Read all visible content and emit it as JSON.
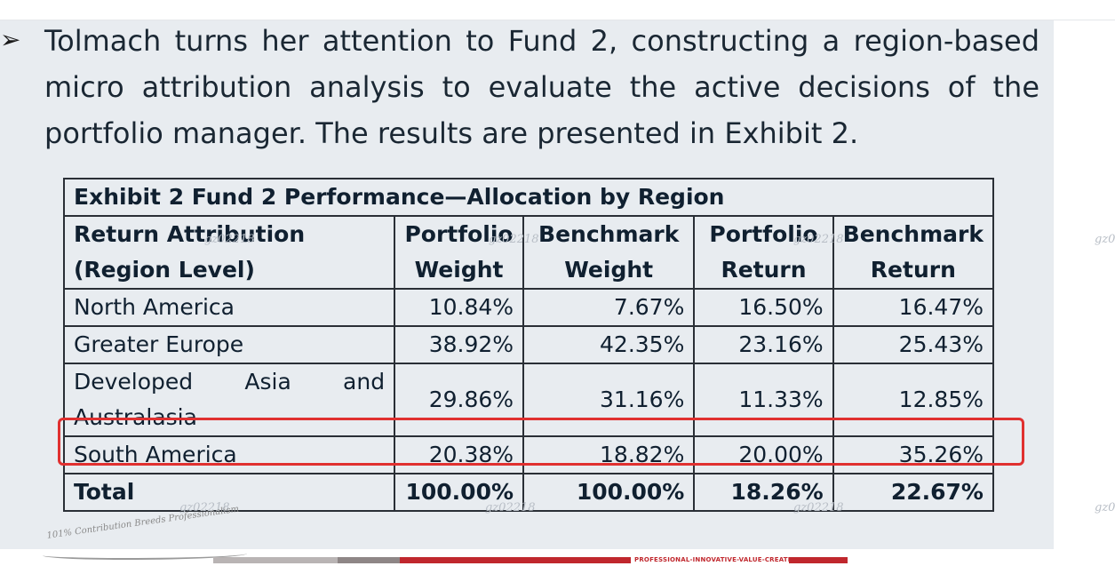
{
  "paragraph": {
    "bullet": "➢",
    "text": "Tolmach turns her attention to Fund 2, constructing a region-based micro attribution analysis to evaluate the active decisions of the portfolio manager. The results are presented in Exhibit 2."
  },
  "exhibit": {
    "title": "Exhibit 2 Fund 2 Performance—Allocation by Region",
    "headers": {
      "col1_line1": "Return Attribution",
      "col1_line2": "(Region Level)",
      "col2_line1": "Portfolio",
      "col2_line2": "Weight",
      "col3_line1": "Benchmark",
      "col3_line2": "Weight",
      "col4_line1": "Portfolio",
      "col4_line2": "Return",
      "col5_line1": "Benchmark",
      "col5_line2": "Return"
    },
    "rows": [
      {
        "region": "North America",
        "pw": "10.84%",
        "bw": "7.67%",
        "pr": "16.50%",
        "br": "16.47%"
      },
      {
        "region": "Greater Europe",
        "pw": "38.92%",
        "bw": "42.35%",
        "pr": "23.16%",
        "br": "25.43%"
      },
      {
        "region_line1": "Developed Asia and",
        "region_line2": "Australasia",
        "pw": "29.86%",
        "bw": "31.16%",
        "pr": "11.33%",
        "br": "12.85%"
      },
      {
        "region": "South America",
        "pw": "20.38%",
        "bw": "18.82%",
        "pr": "20.00%",
        "br": "35.26%"
      }
    ],
    "total": {
      "label": "Total",
      "pw": "100.00%",
      "bw": "100.00%",
      "pr": "18.26%",
      "br": "22.67%"
    }
  },
  "watermark": "gz02218",
  "footer": {
    "slogan": "101% Contribution Breeds Professionalism",
    "tagline": "PROFESSIONAL-INNOVATIVE-VALUE-CREATING"
  },
  "colors": {
    "highlight_border": "#e03030",
    "brand_red": "#c0272d",
    "slide_background": "#e8ecf0"
  }
}
